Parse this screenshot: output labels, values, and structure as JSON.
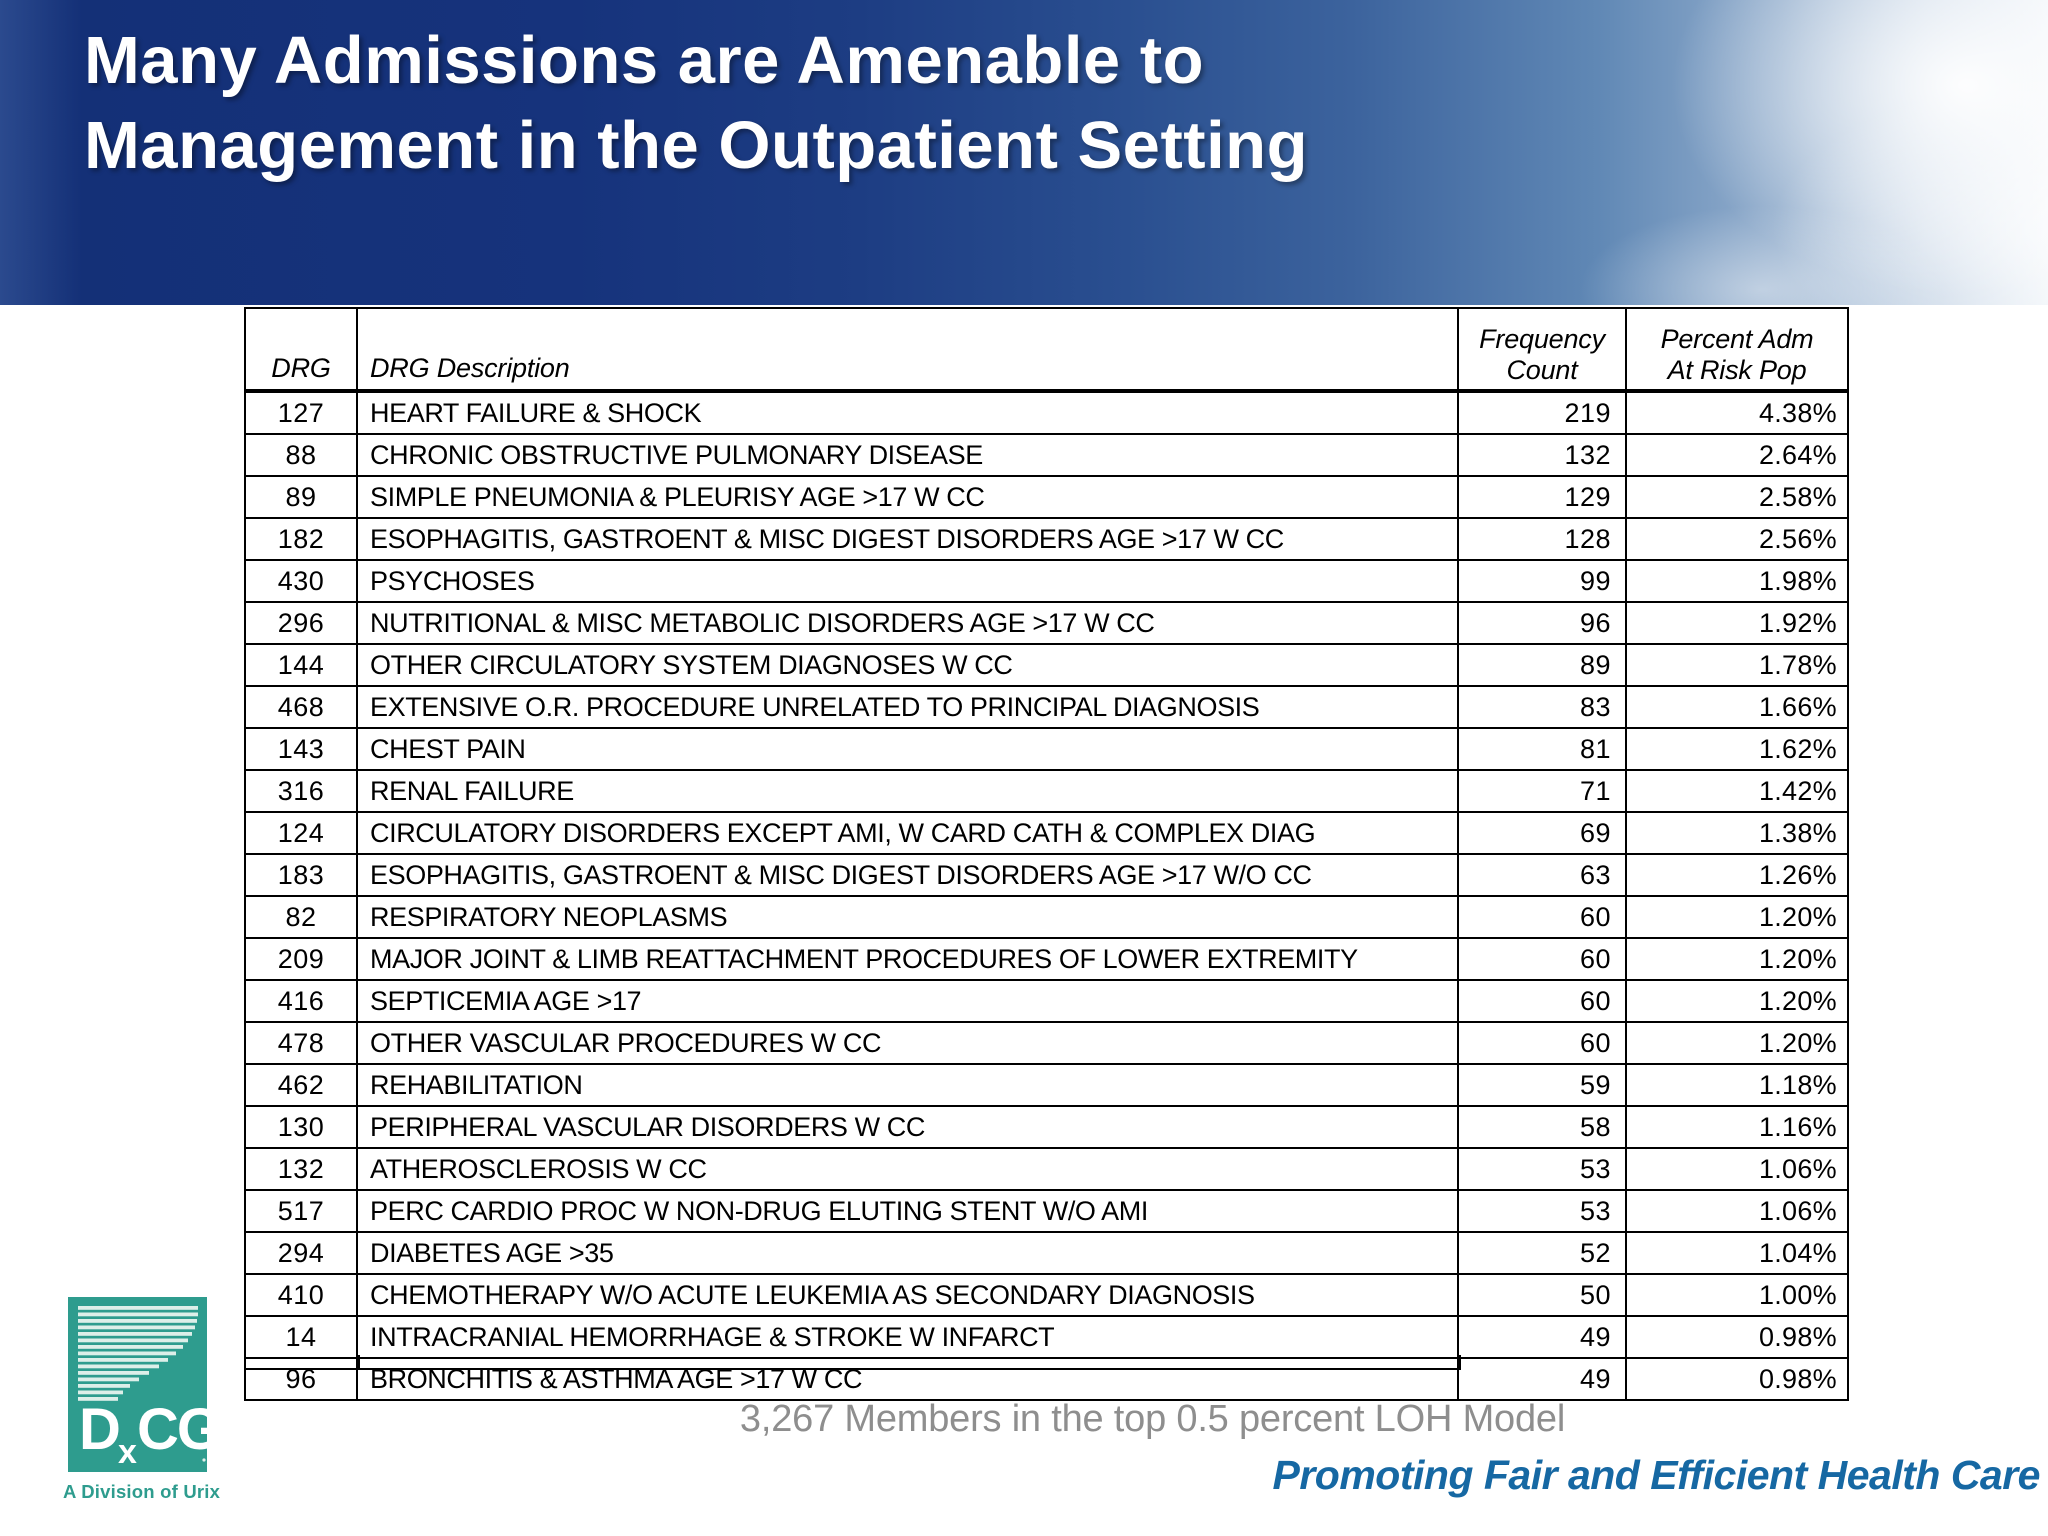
{
  "slide": {
    "title_line1": "Many Admissions are Amenable to",
    "title_line2": "Management in the Outpatient Setting",
    "caption": "3,267 Members in the top 0.5 percent LOH Model",
    "tagline": "Promoting Fair and Efficient Health Care"
  },
  "colors": {
    "banner_navy": "#16337c",
    "tagline_blue": "#1668a3",
    "caption_gray": "#8e8e8e",
    "logo_teal": "#2e9c8e"
  },
  "logo": {
    "text_d": "D",
    "text_x": "x",
    "text_cg": "CG",
    "subtext": "A Division of Urix"
  },
  "table": {
    "headers": {
      "drg": "DRG",
      "description": "DRG Description",
      "frequency_line1": "Frequency",
      "frequency_line2": "Count",
      "percent_line1": "Percent Adm",
      "percent_line2": "At Risk Pop"
    },
    "rows": [
      {
        "drg": "127",
        "desc": "HEART FAILURE & SHOCK",
        "freq": "219",
        "pct": "4.38%"
      },
      {
        "drg": "88",
        "desc": "CHRONIC OBSTRUCTIVE PULMONARY DISEASE",
        "freq": "132",
        "pct": "2.64%"
      },
      {
        "drg": "89",
        "desc": "SIMPLE PNEUMONIA & PLEURISY AGE >17 W CC",
        "freq": "129",
        "pct": "2.58%"
      },
      {
        "drg": "182",
        "desc": "ESOPHAGITIS, GASTROENT & MISC DIGEST DISORDERS AGE >17 W CC",
        "freq": "128",
        "pct": "2.56%"
      },
      {
        "drg": "430",
        "desc": "PSYCHOSES",
        "freq": "99",
        "pct": "1.98%"
      },
      {
        "drg": "296",
        "desc": "NUTRITIONAL & MISC METABOLIC DISORDERS AGE >17 W CC",
        "freq": "96",
        "pct": "1.92%"
      },
      {
        "drg": "144",
        "desc": "OTHER CIRCULATORY SYSTEM DIAGNOSES W CC",
        "freq": "89",
        "pct": "1.78%"
      },
      {
        "drg": "468",
        "desc": "EXTENSIVE O.R. PROCEDURE UNRELATED TO PRINCIPAL DIAGNOSIS",
        "freq": "83",
        "pct": "1.66%"
      },
      {
        "drg": "143",
        "desc": "CHEST PAIN",
        "freq": "81",
        "pct": "1.62%"
      },
      {
        "drg": "316",
        "desc": "RENAL FAILURE",
        "freq": "71",
        "pct": "1.42%"
      },
      {
        "drg": "124",
        "desc": "CIRCULATORY DISORDERS EXCEPT AMI, W CARD CATH & COMPLEX DIAG",
        "freq": "69",
        "pct": "1.38%"
      },
      {
        "drg": "183",
        "desc": "ESOPHAGITIS, GASTROENT & MISC DIGEST DISORDERS AGE >17 W/O CC",
        "freq": "63",
        "pct": "1.26%"
      },
      {
        "drg": "82",
        "desc": "RESPIRATORY NEOPLASMS",
        "freq": "60",
        "pct": "1.20%"
      },
      {
        "drg": "209",
        "desc": "MAJOR JOINT & LIMB REATTACHMENT PROCEDURES OF LOWER EXTREMITY",
        "freq": "60",
        "pct": "1.20%"
      },
      {
        "drg": "416",
        "desc": "SEPTICEMIA AGE >17",
        "freq": "60",
        "pct": "1.20%"
      },
      {
        "drg": "478",
        "desc": "OTHER VASCULAR PROCEDURES W CC",
        "freq": "60",
        "pct": "1.20%"
      },
      {
        "drg": "462",
        "desc": "REHABILITATION",
        "freq": "59",
        "pct": "1.18%"
      },
      {
        "drg": "130",
        "desc": "PERIPHERAL VASCULAR DISORDERS W CC",
        "freq": "58",
        "pct": "1.16%"
      },
      {
        "drg": "132",
        "desc": "ATHEROSCLEROSIS W CC",
        "freq": "53",
        "pct": "1.06%"
      },
      {
        "drg": "517",
        "desc": "PERC CARDIO PROC W NON-DRUG ELUTING STENT W/O AMI",
        "freq": "53",
        "pct": "1.06%"
      },
      {
        "drg": "294",
        "desc": "DIABETES AGE >35",
        "freq": "52",
        "pct": "1.04%"
      },
      {
        "drg": "410",
        "desc": "CHEMOTHERAPY W/O ACUTE LEUKEMIA AS SECONDARY DIAGNOSIS",
        "freq": "50",
        "pct": "1.00%"
      },
      {
        "drg": "14",
        "desc": "INTRACRANIAL HEMORRHAGE & STROKE W INFARCT",
        "freq": "49",
        "pct": "0.98%"
      },
      {
        "drg": "96",
        "desc": "BRONCHITIS & ASTHMA AGE >17 W CC",
        "freq": "49",
        "pct": "0.98%"
      }
    ]
  }
}
